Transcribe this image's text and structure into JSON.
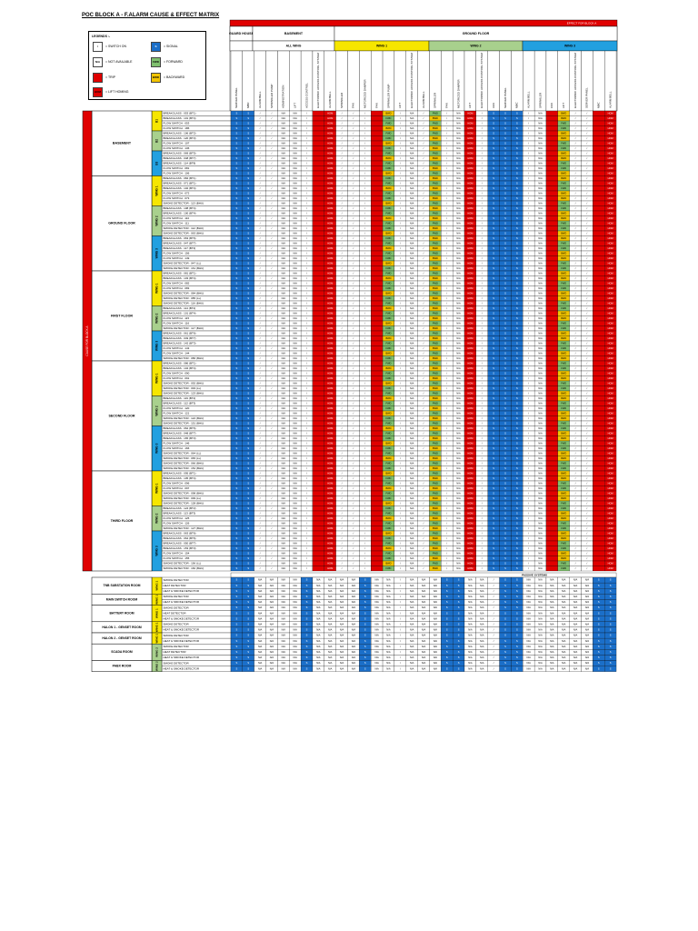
{
  "title": "POC BLOCK A - F.ALARM CAUSE & EFFECT MATRIX",
  "effect_header": "EFFECT FOR BLOCK A",
  "legend": {
    "heading": "LEGENDS :-",
    "items": [
      {
        "sym": "/",
        "text": "= SWITCH ON",
        "color": "#ffffff",
        "symbol_text": "/"
      },
      {
        "sym": "S",
        "text": "= SIGNAL",
        "color": "#1b6fc9",
        "symbol_text": "S"
      },
      {
        "sym": "N/A",
        "text": "= NOT AVAILABLE",
        "color": "#ffffff",
        "symbol_text": "N/A"
      },
      {
        "sym": "FWD",
        "text": "= FORWARD",
        "color": "#7fc06e",
        "symbol_text": "FWD"
      },
      {
        "sym": "T",
        "text": "= TRIP",
        "color": "#e00000",
        "symbol_text": ""
      },
      {
        "sym": "BWD",
        "text": "= BACKWARD",
        "color": "#f2c400",
        "symbol_text": "BWD"
      },
      {
        "sym": "H",
        "text": "= LIFT HOMING",
        "color": "#e00000",
        "symbol_text": "HOM"
      }
    ]
  },
  "header_groups": [
    {
      "label": "GUARD HOUSE",
      "span": 1,
      "color": "#ffffff"
    },
    {
      "label": "BASEMENT",
      "span": 7,
      "color": "#ffffff"
    },
    {
      "label": "GROUND FLOOR",
      "span": 22,
      "color": "#ffffff"
    }
  ],
  "sub_groups": [
    {
      "label": "",
      "span": 1,
      "color": "#ffffff"
    },
    {
      "label": "ALL WING",
      "span": 7,
      "color": "#ffffff"
    },
    {
      "label": "WING 1",
      "span": 8,
      "color": "#f6e600"
    },
    {
      "label": "WING 2",
      "span": 7,
      "color": "#a8d08d"
    },
    {
      "label": "WING 3",
      "span": 7,
      "color": "#22a0e0"
    }
  ],
  "columns": [
    "SERVER PANEL",
    "MBC",
    "ALARM BELL",
    "SPRINKLER PUMP",
    "ADMINISTRATION",
    "LIFT",
    "ACCESS CONTROL",
    "ELECTRONIC ACCESS CONTROL SYSTEM",
    "ALARM BELL",
    "SPRINKLER",
    "FAN",
    "MOTORIZED DAMPER",
    "FAN",
    "SPRINKLER PUMP",
    "LIFT",
    "ELECTRONIC ACCESS CONTROL SYSTEM",
    "ALARM BELL",
    "SPRINKLER",
    "FAN",
    "MOTORIZED DAMPER",
    "LIFT",
    "ELECTRONIC ACCESS CONTROL SYSTEM",
    "AHU",
    "SERVER PANEL",
    "MBC",
    "ALARM BELL",
    "SPRINKLER",
    "FAN",
    "LIFT",
    "ELECTRONIC ACCESS CONTROL SYSTEM"
  ],
  "side_label": "CAUSE FOR BLOCK A",
  "floors": [
    {
      "name": "BASEMENT",
      "groups": [
        {
          "wing": "B1",
          "rows": [
            "BREAKGLASS : 053 (BT1)",
            "BREAKGLASS : 101 (BT4)",
            "FLOW SWITCH : 053",
            "FLOW SWITCH : 186"
          ]
        },
        {
          "wing": "B2",
          "rows": [
            "BREAKGLASS : 106 (BT2)",
            "BREAKGLASS : 120 (BT3)",
            "FLOW SWITCH : 107",
            "FLOW SWITCH : 136"
          ]
        },
        {
          "wing": "B3",
          "rows": [
            "BREAKGLASS : 069 (BT5)",
            "BREAKGLASS : 048 (BT7)",
            "BREAKGLASS : 114 (BT8)",
            "FLOW SWITCH : 081",
            "FLOW SWITCH : 106"
          ]
        }
      ]
    },
    {
      "name": "GROUND FLOOR",
      "groups": [
        {
          "wing": "WING 1",
          "rows": [
            "BREAKGLASS : 084 (BT1)",
            "BREAKGLASS : 071 (BT1)",
            "BREAKGLASS : 102 (BT4)",
            "FLOW SWITCH : 072",
            "FLOW SWITCH : 073",
            "SMOKE DETECTOR : 113 (BHU)"
          ]
        },
        {
          "wing": "WING 2",
          "rows": [
            "BREAKGLASS : 108 (BT4)",
            "BREAKGLASS : 100 (BT4)",
            "FLOW SWITCH : 110",
            "FLOW SWITCH : 111",
            "SMOKE DETECTOR : 112 (BHU)",
            "SMOKE DETECTOR : 063 (BHU)"
          ]
        },
        {
          "wing": "WING 3",
          "rows": [
            "BREAKGLASS : 063 (BT6)",
            "BREAKGLASS : 047 (BT7)",
            "BREAKGLASS : 117 (BT3)",
            "FLOW SWITCH : 156",
            "FLOW SWITCH : 149",
            "SMOKE DETECTOR : 047 (LL)",
            "SMOKE DETECTOR : 161 (BHU)"
          ]
        }
      ]
    },
    {
      "name": "FIRST FLOOR",
      "groups": [
        {
          "wing": "WING 1",
          "rows": [
            "BREAKGLASS : 081 (BT1)",
            "BREAKGLASS : 103 (BT4)",
            "FLOW SWITCH : 082",
            "FLOW SWITCH : 083",
            "SMOKE DETECTOR : 084 (BHU)",
            "SMOKE DETECTOR : 085 (LL)",
            "SMOKE DETECTOR : 116 (BHU)"
          ]
        },
        {
          "wing": "WING 2",
          "rows": [
            "BREAKGLASS : 114 (BT2)",
            "BREAKGLASS : 101 (BT4)",
            "FLOW SWITCH : 115",
            "FLOW SWITCH : 116",
            "SMOKE DETECTOR : 117 (BHU)"
          ]
        },
        {
          "wing": "WING 3",
          "rows": [
            "BREAKGLASS : 061 (BT6)",
            "BREAKGLASS : 049 (BT7)",
            "BREAKGLASS : 142 (BT3)",
            "FLOW SWITCH : 143",
            "FLOW SWITCH : 144",
            "SMOKE DETECTOR : 086 (BHU)"
          ]
        }
      ]
    },
    {
      "name": "SECOND FLOOR",
      "groups": [
        {
          "wing": "WING 1",
          "rows": [
            "BREAKGLASS : 086 (BT1)",
            "BREAKGLASS : 104 (BT4)",
            "FLOW SWITCH : 090",
            "FLOW SWITCH : 091",
            "SMOKE DETECTOR : 092 (BHU)",
            "SMOKE DETECTOR : 093 (LL)",
            "SMOKE DETECTOR : 123 (BHU)"
          ]
        },
        {
          "wing": "WING 2",
          "rows": [
            "BREAKGLASS : 119 (BT2)",
            "BREAKGLASS : 112 (BT3)",
            "FLOW SWITCH : 120",
            "FLOW SWITCH : 121",
            "SMOKE DETECTOR : 122 (BHU)",
            "SMOKE DETECTOR : 151 (BHU)"
          ]
        },
        {
          "wing": "WING 3",
          "rows": [
            "BREAKGLASS : 062 (BT6)",
            "BREAKGLASS : 048 (BT7)",
            "BREAKGLASS : 165 (BT3)",
            "FLOW SWITCH : 146",
            "FLOW SWITCH : 166",
            "SMOKE DETECTOR : 064 (LL)",
            "SMOKE DETECTOR : 065 (LL)",
            "SMOKE DETECTOR : 066 (BHU)",
            "SMOKE DETECTOR : 152 (BHU)"
          ]
        }
      ]
    },
    {
      "name": "THIRD FLOOR",
      "groups": [
        {
          "wing": "WING 1",
          "rows": [
            "BREAKGLASS : 095 (BT1)",
            "BREAKGLASS : 105 (BT4)",
            "FLOW SWITCH : 096",
            "FLOW SWITCH : 097",
            "SMOKE DETECTOR : 098 (BHU)",
            "SMOKE DETECTOR : 099 (LL)",
            "SMOKE DETECTOR : 128 (BHU)"
          ]
        },
        {
          "wing": "WING 2",
          "rows": [
            "BREAKGLASS : 124 (BT2)",
            "BREAKGLASS : 113 (BT3)",
            "FLOW SWITCH : 125",
            "FLOW SWITCH : 126",
            "SMOKE DETECTOR : 127 (BHU)"
          ]
        },
        {
          "wing": "WING 3",
          "rows": [
            "BREAKGLASS : 063 (BT6)",
            "BREAKGLASS : 064 (BT6)",
            "BREAKGLASS : 050 (BT7)",
            "BREAKGLASS : 153 (BT3)",
            "FLOW SWITCH : 154",
            "FLOW SWITCH : 155",
            "SMOKE DETECTOR : 156 (LL)",
            "SMOKE DETECTOR : 160 (BHU)"
          ]
        }
      ]
    }
  ],
  "passive_label": "PASSIVE SYSTEMS",
  "rooms": [
    {
      "name": "TNB SUBSTATION ROOM",
      "wing": "WING 1",
      "rows": [
        "SMOKE DETECTOR",
        "HEAT DETECTOR",
        "HEAT & SMOKE DETECTOR"
      ]
    },
    {
      "name": "MAIN SWITCH ROOM",
      "wing": "WING 1",
      "rows": [
        "SMOKE DETECTOR",
        "HEAT & SMOKE DETECTOR"
      ]
    },
    {
      "name": "BATTERY ROOM",
      "wing": "WING 1",
      "rows": [
        "SMOKE DETECTOR",
        "HEAT DETECTOR",
        "HEAT & SMOKE DETECTOR"
      ]
    },
    {
      "name": "HALON 1 - GENSET ROOM",
      "wing": "WING 1",
      "rows": [
        "SMOKE DETECTOR",
        "HEAT & SMOKE DETECTOR"
      ]
    },
    {
      "name": "HALON 2 - GENSET ROOM",
      "wing": "WING 1",
      "rows": [
        "SMOKE DETECTOR",
        "HEAT & SMOKE DETECTOR"
      ]
    },
    {
      "name": "SCADA ROOM",
      "wing": "WING 2",
      "rows": [
        "SMOKE DETECTOR",
        "HEAT DETECTOR",
        "HEAT & SMOKE DETECTOR"
      ]
    },
    {
      "name": "PABX ROOM",
      "wing": "WING 2",
      "rows": [
        "SMOKE DETECTOR",
        "HEAT & SMOKE DETECTOR"
      ]
    }
  ],
  "cell_symbols": {
    "signal": "S",
    "switch": "/",
    "na": "N/A",
    "fwd": "FWD",
    "bwd": "BWD",
    "hom": "HOM"
  },
  "colors": {
    "red": "#e00000",
    "blue": "#1b6fc9",
    "green": "#7fc06e",
    "yellow": "#f2c400",
    "wing1": "#f6e600",
    "wing2": "#a8d08d",
    "wing3": "#22a0e0"
  }
}
